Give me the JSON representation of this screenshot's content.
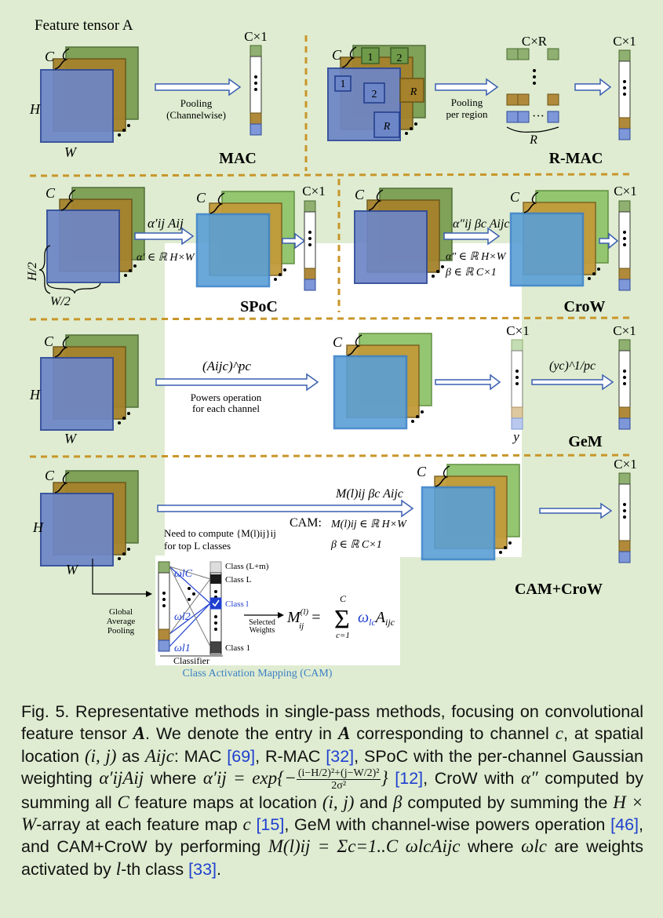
{
  "figure": {
    "feature_tensor_label": "Feature tensor A",
    "dims": {
      "c": "C",
      "h": "H",
      "w": "W",
      "half_h": "H/2",
      "half_w": "W/2",
      "cx1": "C×1",
      "cxr": "C×R",
      "r": "R"
    },
    "mac": {
      "title": "MAC",
      "op_line1": "Pooling",
      "op_line2": "(Channelwise)"
    },
    "rmac": {
      "title": "R-MAC",
      "op_line1": "Pooling",
      "op_line2": "per region",
      "region_labels": [
        "1",
        "2",
        "1",
        "2",
        "R",
        "R"
      ],
      "ellipsis": "···"
    },
    "spoc": {
      "title": "SPoC",
      "formula": "α′ij Aij",
      "domain": "α′ ∈ ℝ H×W"
    },
    "crow": {
      "title": "CroW",
      "formula": "α″ij βc Aijc",
      "domain1": "α″ ∈ ℝ H×W",
      "domain2": "β ∈ ℝ C×1"
    },
    "gem": {
      "title": "GeM",
      "formula1": "(Aijc)^pc",
      "op_line1": "Powers operation",
      "op_line2": "for each channel",
      "formula2": "(yc)^1/pc",
      "y_label": "y"
    },
    "cam": {
      "title": "CAM+CroW",
      "formula": "M(l)ij βc Aijc",
      "cam_label": "CAM:",
      "domain1": "M(l)ij ∈ ℝ H×W",
      "domain2": "β ∈ ℝ C×1",
      "need_line1": "Need to compute {M(l)ij}ij",
      "need_line2": "for top L classes",
      "gap_line1": "Global",
      "gap_line2": "Average",
      "gap_line3": "Pooling",
      "classifier": "Classifier",
      "weights": [
        "ωlC",
        "ωl2",
        "ωl1"
      ],
      "classes": [
        "Class (L+m)",
        "Class L",
        "Class l",
        "Class 1"
      ],
      "selected_line1": "Selected",
      "selected_line2": "Weights",
      "cam_formula": "M(l)ij = Σ ωlc Aijc",
      "sum_top": "C",
      "sum_bottom": "c=1",
      "box_label": "Class Activation Mapping (CAM)"
    }
  },
  "caption": {
    "s1": "Fig. 5. Representative methods in single-pass methods, focusing on convolutional feature tensor ",
    "A": "A",
    "s2": ". We denote the entry in ",
    "s3": " corresponding to channel ",
    "c": "c",
    "s4": ", at spatial location ",
    "ij": "(i, j)",
    "s5": " as ",
    "Aijc": "Aijc",
    "s6": ": MAC ",
    "ref69": "[69]",
    "s7": ", R-MAC ",
    "ref32": "[32]",
    "s8": ", SPoC with the per-channel Gaussian weighting ",
    "alpha_expr": "α′ijAij",
    "s9": " where ",
    "alpha_lhs": "α′ij =",
    "exp_prefix": "exp{−",
    "frac_num": "(i−H/2)²+(j−W/2)²",
    "frac_den": "2σ²",
    "exp_suffix": "}",
    "ref12": "[12]",
    "s10": ", CroW with ",
    "alpha2": "α″",
    "s11": " computed by summing all ",
    "C": "C",
    "s12": " feature maps at location ",
    "s13": " and ",
    "beta": "β",
    "s14": " computed by summing the ",
    "HxW": "H × W",
    "s15": "-array at each feature map ",
    "ref15": "[15]",
    "s16": ", GeM with channel-wise powers operation ",
    "ref46": "[46]",
    "s17": ", and CAM+CroW by performing ",
    "Mexpr": "M(l)ij = Σc=1..C ωlcAijc",
    "s18": " where ",
    "wlc": "ωlc",
    "s19": " are weights activated by ",
    "l": "l",
    "s20": "-th class ",
    "ref33": "[33]",
    "s21": "."
  }
}
